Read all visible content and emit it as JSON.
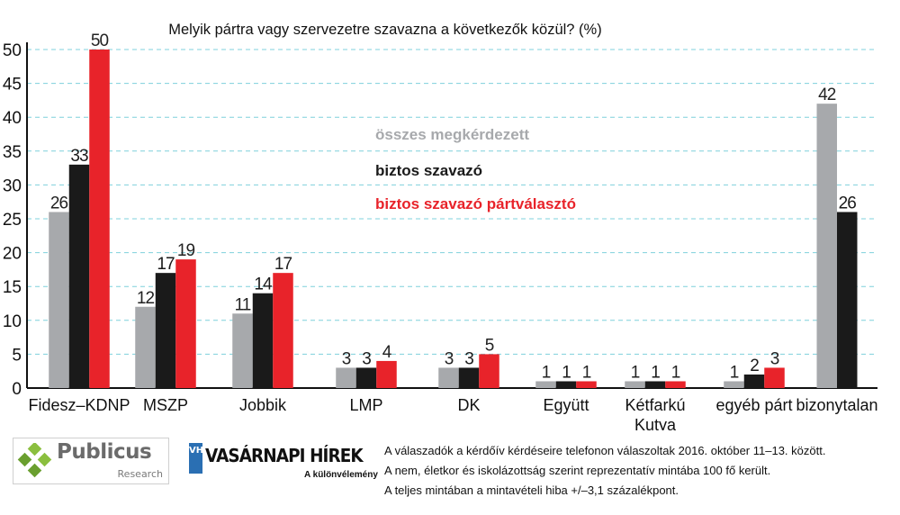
{
  "chart_data": {
    "type": "bar",
    "title": "Melyik pártra vagy szervezetre szavazna a következők közül? (%)",
    "ylim": [
      0,
      50
    ],
    "yticks": [
      0,
      5,
      10,
      15,
      20,
      25,
      30,
      35,
      40,
      45,
      50
    ],
    "grid": true,
    "legend_placement": "center",
    "categories": [
      "Fidesz–KDNP",
      "MSZP",
      "Jobbik",
      "LMP",
      "DK",
      "Együtt",
      "Kétfarkú|Kutya",
      "egyéb párt",
      "bizonytalan"
    ],
    "series": [
      {
        "name": "összes megkérdezett",
        "color": "#a7a9ac",
        "label_color": "#222222",
        "values": [
          26,
          12,
          11,
          3,
          3,
          1,
          1,
          1,
          42
        ]
      },
      {
        "name": "biztos szavazó",
        "color": "#1a1a1a",
        "label_color": "#1a1a1a",
        "values": [
          33,
          17,
          14,
          3,
          3,
          1,
          1,
          2,
          26
        ]
      },
      {
        "name": "biztos szavazó pártválasztó",
        "color": "#e8232a",
        "label_color": "#222222",
        "values": [
          50,
          19,
          17,
          4,
          5,
          1,
          1,
          3,
          null
        ]
      }
    ]
  },
  "footer": {
    "publicus_name": "Publicus",
    "publicus_sub": "Research",
    "vh_badge": "VH",
    "vh_title": "VASÁRNAPI HÍREK",
    "vh_sub": "A különvélemény",
    "notes": [
      "A válaszadók a kérdőív kérdéseire telefonon válaszoltak 2016. október 11–13. között.",
      "A nem, életkor és iskolázottság szerint reprezentatív mintába 100 fő került.",
      "A teljes mintában a mintavételi hiba +/–3,1 százalékpont."
    ]
  }
}
